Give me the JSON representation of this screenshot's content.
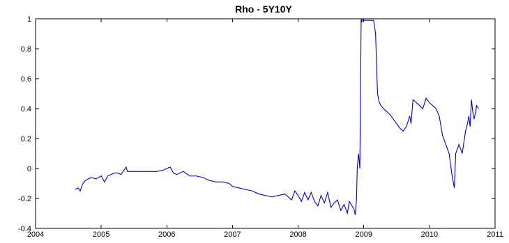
{
  "chart_data": {
    "type": "line",
    "title": "Rho - 5Y10Y",
    "xlabel": "",
    "ylabel": "",
    "xlim": [
      2004,
      2011
    ],
    "ylim": [
      -0.4,
      1
    ],
    "grid": false,
    "xticks": [
      2004,
      2005,
      2006,
      2007,
      2008,
      2009,
      2010,
      2011
    ],
    "xtick_labels": [
      "2004",
      "2005",
      "2006",
      "2007",
      "2008",
      "2009",
      "2010",
      "2011"
    ],
    "yticks": [
      -0.4,
      -0.2,
      0,
      0.2,
      0.4,
      0.6,
      0.8,
      1
    ],
    "ytick_labels": [
      "-0.4",
      "-0.2",
      "0",
      "0.2",
      "0.4",
      "0.6",
      "0.8",
      "1"
    ],
    "series": [
      {
        "color": "#0000cc",
        "x": [
          2004.6,
          2004.65,
          2004.68,
          2004.72,
          2004.76,
          2004.8,
          2004.85,
          2004.92,
          2005.0,
          2005.05,
          2005.1,
          2005.15,
          2005.2,
          2005.25,
          2005.3,
          2005.35,
          2005.38,
          2005.4,
          2005.45,
          2005.55,
          2005.65,
          2005.75,
          2005.85,
          2005.95,
          2006.0,
          2006.05,
          2006.1,
          2006.15,
          2006.25,
          2006.35,
          2006.45,
          2006.55,
          2006.65,
          2006.75,
          2006.85,
          2006.95,
          2007.0,
          2007.1,
          2007.2,
          2007.3,
          2007.4,
          2007.5,
          2007.6,
          2007.7,
          2007.8,
          2007.9,
          2007.95,
          2008.0,
          2008.05,
          2008.1,
          2008.15,
          2008.2,
          2008.25,
          2008.3,
          2008.35,
          2008.4,
          2008.45,
          2008.5,
          2008.55,
          2008.6,
          2008.65,
          2008.7,
          2008.75,
          2008.78,
          2008.82,
          2008.85,
          2008.87,
          2008.89,
          2008.9,
          2008.92,
          2008.94,
          2008.96,
          2008.97,
          2008.99,
          2009.0,
          2009.05,
          2009.1,
          2009.15,
          2009.18,
          2009.2,
          2009.21,
          2009.23,
          2009.26,
          2009.3,
          2009.35,
          2009.4,
          2009.45,
          2009.5,
          2009.55,
          2009.6,
          2009.65,
          2009.7,
          2009.72,
          2009.75,
          2009.8,
          2009.85,
          2009.9,
          2009.95,
          2010.0,
          2010.05,
          2010.1,
          2010.15,
          2010.2,
          2010.25,
          2010.3,
          2010.33,
          2010.35,
          2010.38,
          2010.4,
          2010.45,
          2010.5,
          2010.55,
          2010.58,
          2010.6,
          2010.62,
          2010.64,
          2010.66,
          2010.68,
          2010.7,
          2010.72,
          2010.75
        ],
        "y": [
          -0.14,
          -0.13,
          -0.15,
          -0.1,
          -0.08,
          -0.07,
          -0.06,
          -0.07,
          -0.05,
          -0.09,
          -0.05,
          -0.04,
          -0.03,
          -0.03,
          -0.04,
          -0.01,
          0.01,
          -0.02,
          -0.02,
          -0.02,
          -0.02,
          -0.02,
          -0.02,
          -0.01,
          0.0,
          0.01,
          -0.03,
          -0.04,
          -0.02,
          -0.05,
          -0.05,
          -0.06,
          -0.08,
          -0.09,
          -0.09,
          -0.1,
          -0.12,
          -0.13,
          -0.14,
          -0.15,
          -0.17,
          -0.18,
          -0.19,
          -0.18,
          -0.17,
          -0.21,
          -0.15,
          -0.18,
          -0.22,
          -0.16,
          -0.21,
          -0.16,
          -0.22,
          -0.25,
          -0.18,
          -0.23,
          -0.16,
          -0.26,
          -0.23,
          -0.21,
          -0.28,
          -0.24,
          -0.3,
          -0.22,
          -0.25,
          -0.27,
          -0.31,
          -0.2,
          0.0,
          0.1,
          0.0,
          1.0,
          0.98,
          1.0,
          0.99,
          0.99,
          0.99,
          0.99,
          0.9,
          0.62,
          0.5,
          0.45,
          0.42,
          0.4,
          0.38,
          0.36,
          0.33,
          0.3,
          0.27,
          0.25,
          0.28,
          0.35,
          0.3,
          0.46,
          0.44,
          0.42,
          0.4,
          0.47,
          0.44,
          0.42,
          0.4,
          0.35,
          0.22,
          0.16,
          0.1,
          0.0,
          -0.06,
          -0.13,
          0.1,
          0.16,
          0.1,
          0.25,
          0.3,
          0.35,
          0.28,
          0.46,
          0.38,
          0.33,
          0.37,
          0.42,
          0.4
        ]
      }
    ]
  }
}
